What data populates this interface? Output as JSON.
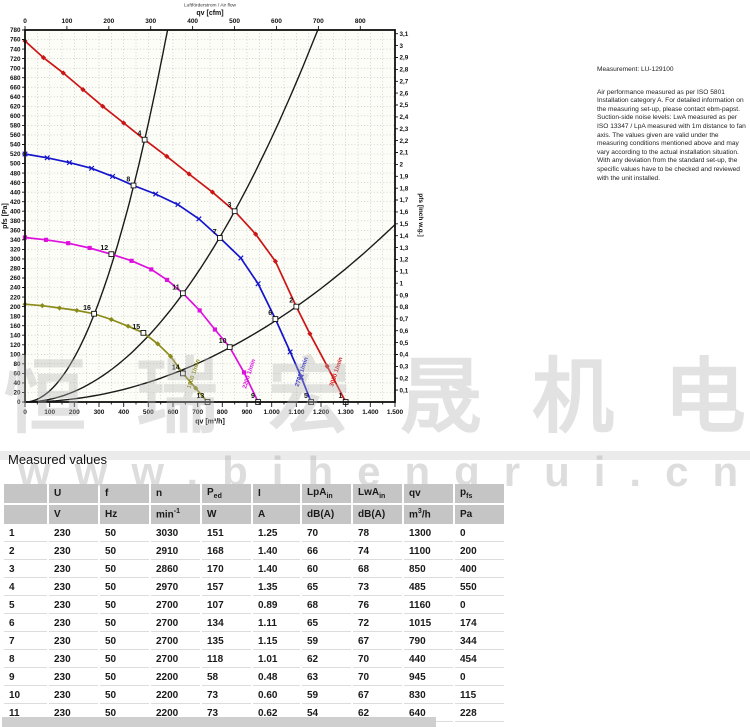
{
  "watermarks": {
    "cjk": "恒瑞宏晟机电",
    "url": "www.bjhengrui.cn"
  },
  "measurement_note": {
    "title": "Measurement: LU-129100",
    "body": "Air performance measured as per ISO 5801 Installation category A. For detailed information on the measuring set-up, please contact ebm-papst. Suction-side noise levels: LwA measured as per ISO 13347 / LpA measured with 1m distance to fan axis. The values given are valid under the measuring conditions mentioned above and may vary according to the actual installation situation. With any deviation from the standard set-up, the specific values have to be checked and reviewed with the unit installed."
  },
  "section": {
    "title": "Measured values"
  },
  "chart_data": {
    "type": "line",
    "title_small": "Luftförderstrom / Air flow",
    "x_top": {
      "label": "qv [cfm]",
      "min": 0,
      "max": 800,
      "step": 100
    },
    "x_bottom": {
      "label": "qv [m³/h]",
      "min": 0,
      "max": 1500,
      "step": 100,
      "minor": 50
    },
    "y_left": {
      "label": "pfs [Pa]",
      "min": 0,
      "max": 780,
      "step": 20
    },
    "y_right": {
      "label": "pfs [inch w.g.]",
      "min": 0.1,
      "max": 3.1,
      "step": 0.1,
      "pa_per_unit": 249.089
    },
    "grid": {
      "x_step": 50,
      "y_step": 20
    },
    "series": [
      {
        "name": "3030 1/min",
        "color": "#cc1515",
        "marker": "diamond",
        "label_pos": [
          1268,
          62
        ],
        "points": [
          [
            0,
            757
          ],
          [
            75,
            722
          ],
          [
            155,
            690
          ],
          [
            235,
            655
          ],
          [
            315,
            620
          ],
          [
            400,
            585
          ],
          [
            485,
            550
          ],
          [
            575,
            515
          ],
          [
            665,
            478
          ],
          [
            760,
            440
          ],
          [
            850,
            400
          ],
          [
            935,
            352
          ],
          [
            1015,
            295
          ],
          [
            1100,
            200
          ],
          [
            1155,
            143
          ],
          [
            1225,
            75
          ],
          [
            1300,
            0
          ]
        ]
      },
      {
        "name": "2700 1/min",
        "color": "#1515cc",
        "marker": "x",
        "label_pos": [
          1128,
          62
        ],
        "points": [
          [
            0,
            520
          ],
          [
            90,
            512
          ],
          [
            180,
            502
          ],
          [
            270,
            490
          ],
          [
            355,
            473
          ],
          [
            440,
            454
          ],
          [
            530,
            436
          ],
          [
            620,
            414
          ],
          [
            705,
            384
          ],
          [
            790,
            344
          ],
          [
            875,
            302
          ],
          [
            945,
            248
          ],
          [
            1015,
            174
          ],
          [
            1075,
            105
          ],
          [
            1120,
            52
          ],
          [
            1160,
            0
          ]
        ]
      },
      {
        "name": "2200 1/min",
        "color": "#dd10dd",
        "marker": "square",
        "label_pos": [
          915,
          58
        ],
        "points": [
          [
            0,
            345
          ],
          [
            85,
            340
          ],
          [
            175,
            333
          ],
          [
            262,
            323
          ],
          [
            350,
            310
          ],
          [
            432,
            296
          ],
          [
            512,
            278
          ],
          [
            576,
            256
          ],
          [
            640,
            228
          ],
          [
            708,
            192
          ],
          [
            770,
            152
          ],
          [
            830,
            115
          ],
          [
            888,
            62
          ],
          [
            945,
            0
          ]
        ]
      },
      {
        "name": "1800 1/min",
        "color": "#8b8b1a",
        "marker": "diamond",
        "label_pos": [
          690,
          58
        ],
        "points": [
          [
            0,
            205
          ],
          [
            70,
            202
          ],
          [
            140,
            197
          ],
          [
            210,
            192
          ],
          [
            280,
            185
          ],
          [
            350,
            173
          ],
          [
            418,
            159
          ],
          [
            480,
            145
          ],
          [
            538,
            122
          ],
          [
            590,
            96
          ],
          [
            640,
            60
          ],
          [
            692,
            29
          ],
          [
            740,
            0
          ]
        ]
      }
    ],
    "system_curves": [
      {
        "k": 0.002337,
        "q_end": 578
      },
      {
        "k": 0.000554,
        "q_end": 1187
      },
      {
        "k": 0.0001653,
        "q_end": 1500
      }
    ],
    "operating_points": [
      {
        "n": 1,
        "q": 1300,
        "p": 0
      },
      {
        "n": 2,
        "q": 1100,
        "p": 200
      },
      {
        "n": 3,
        "q": 850,
        "p": 400
      },
      {
        "n": 4,
        "q": 485,
        "p": 550
      },
      {
        "n": 5,
        "q": 1160,
        "p": 0
      },
      {
        "n": 6,
        "q": 1015,
        "p": 174
      },
      {
        "n": 7,
        "q": 790,
        "p": 344
      },
      {
        "n": 8,
        "q": 440,
        "p": 454
      },
      {
        "n": 9,
        "q": 945,
        "p": 0
      },
      {
        "n": 10,
        "q": 830,
        "p": 115
      },
      {
        "n": 11,
        "q": 640,
        "p": 228
      },
      {
        "n": 12,
        "q": 350,
        "p": 310
      },
      {
        "n": 13,
        "q": 740,
        "p": 0
      },
      {
        "n": 14,
        "q": 640,
        "p": 60
      },
      {
        "n": 15,
        "q": 480,
        "p": 145
      },
      {
        "n": 16,
        "q": 280,
        "p": 185
      }
    ]
  },
  "table": {
    "headers": [
      "",
      "U",
      "f",
      "n",
      "P_{ed}",
      "I",
      "LpA_{in}",
      "LwA_{in}",
      "qv",
      "p_{fs}"
    ],
    "units": [
      "",
      "V",
      "Hz",
      "min^{-1}",
      "W",
      "A",
      "dB(A)",
      "dB(A)",
      "m^{3}/h",
      "Pa"
    ],
    "rows": [
      [
        "1",
        "230",
        "50",
        "3030",
        "151",
        "1.25",
        "70",
        "78",
        "1300",
        "0"
      ],
      [
        "2",
        "230",
        "50",
        "2910",
        "168",
        "1.40",
        "66",
        "74",
        "1100",
        "200"
      ],
      [
        "3",
        "230",
        "50",
        "2860",
        "170",
        "1.40",
        "60",
        "68",
        "850",
        "400"
      ],
      [
        "4",
        "230",
        "50",
        "2970",
        "157",
        "1.35",
        "65",
        "73",
        "485",
        "550"
      ],
      [
        "5",
        "230",
        "50",
        "2700",
        "107",
        "0.89",
        "68",
        "76",
        "1160",
        "0"
      ],
      [
        "6",
        "230",
        "50",
        "2700",
        "134",
        "1.11",
        "65",
        "72",
        "1015",
        "174"
      ],
      [
        "7",
        "230",
        "50",
        "2700",
        "135",
        "1.15",
        "59",
        "67",
        "790",
        "344"
      ],
      [
        "8",
        "230",
        "50",
        "2700",
        "118",
        "1.01",
        "62",
        "70",
        "440",
        "454"
      ],
      [
        "9",
        "230",
        "50",
        "2200",
        "58",
        "0.48",
        "63",
        "70",
        "945",
        "0"
      ],
      [
        "10",
        "230",
        "50",
        "2200",
        "73",
        "0.60",
        "59",
        "67",
        "830",
        "115"
      ],
      [
        "11",
        "230",
        "50",
        "2200",
        "73",
        "0.62",
        "54",
        "62",
        "640",
        "228"
      ]
    ]
  }
}
